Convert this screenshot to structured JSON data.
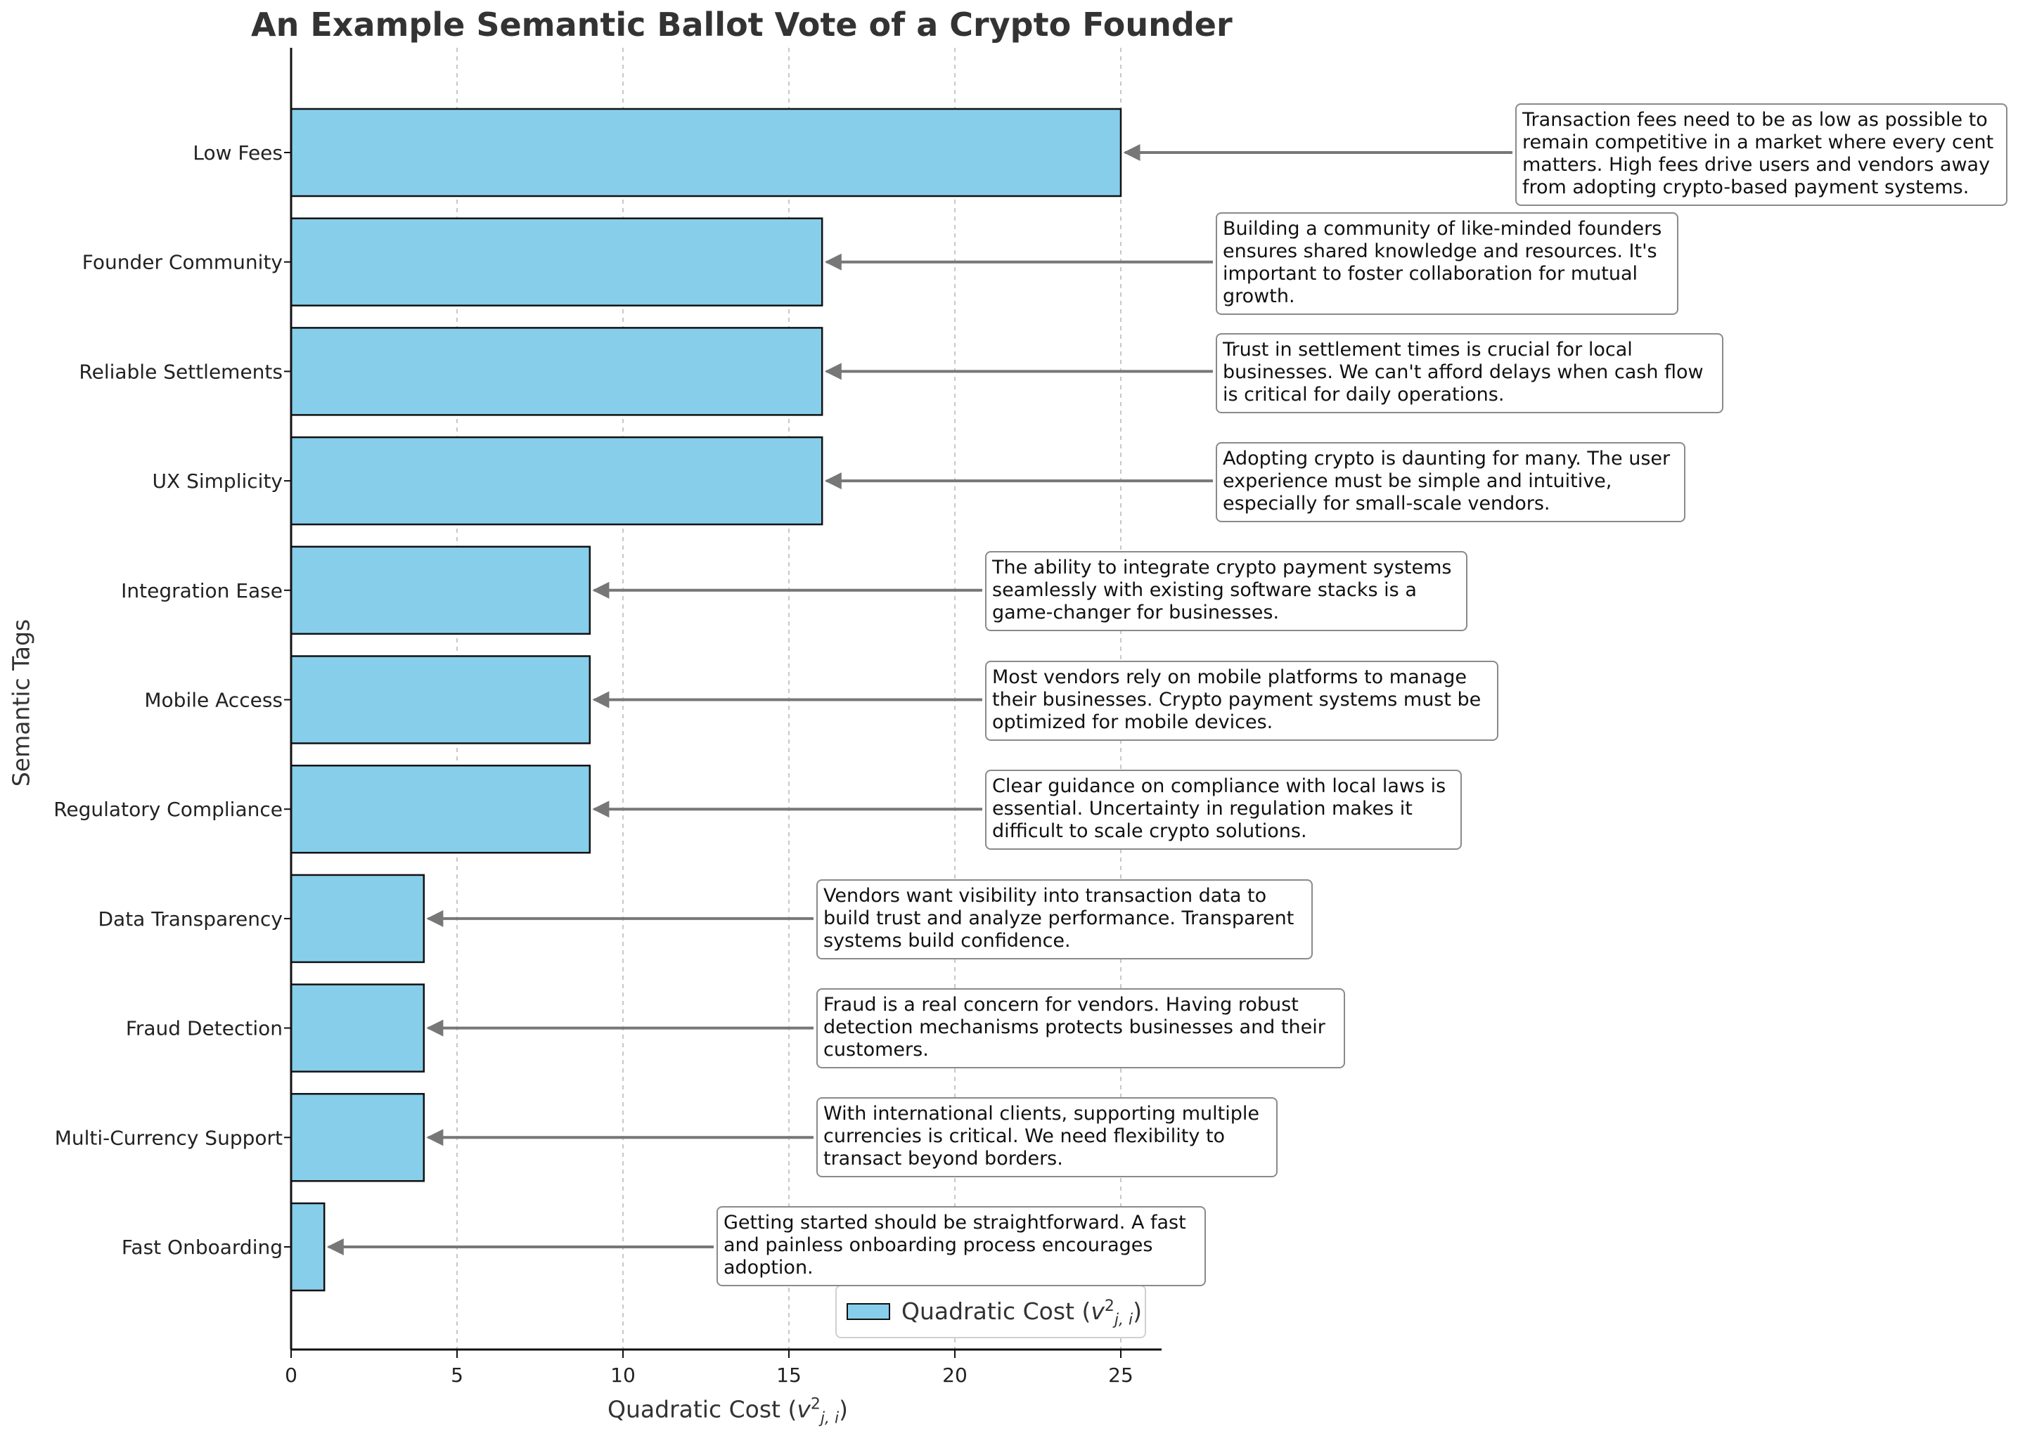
{
  "chart_data": {
    "type": "bar",
    "orientation": "horizontal",
    "title": "An Example Semantic Ballot Vote of a Crypto Founder",
    "xlabel": "Quadratic Cost",
    "ylabel": "Semantic Tags",
    "xlim": [
      0,
      26.25
    ],
    "xticks": [
      "0",
      "5",
      "10",
      "15",
      "20",
      "25"
    ],
    "grid": "x-dashed",
    "legend_placement": "bottom-center",
    "bar_color": "#87CEEB",
    "edge_color": "#111111",
    "categories": [
      "Low Fees",
      "Founder Community",
      "Reliable Settlements",
      "UX Simplicity",
      "Integration Ease",
      "Mobile Access",
      "Regulatory Compliance",
      "Data Transparency",
      "Fraud Detection",
      "Multi-Currency Support",
      "Fast Onboarding"
    ],
    "series": [
      {
        "name": "Quadratic Cost",
        "values": [
          25,
          16,
          16,
          16,
          9,
          9,
          9,
          4,
          4,
          4,
          1
        ]
      }
    ],
    "annotations": [
      "Transaction fees need to be as low as possible to remain competitive in a market where every cent matters. High fees drive users and vendors away from adopting crypto-based payment systems.",
      "Building a community of like-minded founders ensures shared knowledge and resources. It's important to foster collaboration for mutual growth.",
      "Trust in settlement times is crucial for local businesses. We can't afford delays when cash flow is critical for daily operations.",
      "Adopting crypto is daunting for many. The user experience must be simple and intuitive, especially for small-scale vendors.",
      "The ability to integrate crypto payment systems seamlessly with existing software stacks is a game-changer for businesses.",
      "Most vendors rely on mobile platforms to manage their businesses. Crypto payment systems must be optimized for mobile devices.",
      "Clear guidance on compliance with local laws is essential. Uncertainty in regulation makes it difficult to scale crypto solutions.",
      "Vendors want visibility into transaction data to build trust and analyze performance. Transparent systems build confidence.",
      "Fraud is a real concern for vendors. Having robust detection mechanisms protects businesses and their customers.",
      "With international clients, supporting multiple currencies is critical. We need flexibility to transact beyond borders.",
      "Getting started should be straightforward. A fast and painless onboarding process encourages adoption."
    ]
  },
  "legend": {
    "label": "Quadratic Cost"
  }
}
